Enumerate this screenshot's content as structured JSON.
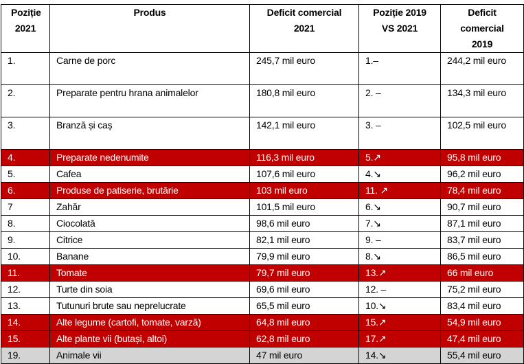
{
  "headers": [
    "Poziție 2021",
    "Produs",
    "Deficit comercial 2021",
    "Poziție 2019 VS 2021",
    "Deficit comercial 2019"
  ],
  "colors": {
    "highlight_red": "#c00000",
    "highlight_grey": "#d4d4d4"
  },
  "rows": [
    {
      "pos": "1.",
      "product": "Carne de porc",
      "deficit2021": "245,7 mil euro",
      "pos2019": "1.–",
      "deficit2019": "244,2 mil euro",
      "style": "tall"
    },
    {
      "pos": "2.",
      "product": "Preparate pentru hrana animalelor",
      "deficit2021": "180,8 mil euro",
      "pos2019": "2. –",
      "deficit2019": "134,3 mil euro",
      "style": "tall"
    },
    {
      "pos": "3.",
      "product": "Branză și caș",
      "deficit2021": "142,1 mil euro",
      "pos2019": "3. –",
      "deficit2019": "102,5 mil euro",
      "style": "tall"
    },
    {
      "pos": "4.",
      "product": "Preparate nedenumite",
      "deficit2021": "116,3 mil euro",
      "pos2019": "5.↗",
      "deficit2019": "95,8 mil euro",
      "style": "red"
    },
    {
      "pos": "5.",
      "product": "Cafea",
      "deficit2021": "107,6 mil euro",
      "pos2019": "4.↘",
      "deficit2019": "96,2 mil euro",
      "style": "std"
    },
    {
      "pos": "6.",
      "product": "Produse de patiserie, brutărie",
      "deficit2021": "103 mil euro",
      "pos2019": "11. ↗",
      "deficit2019": "78,4 mil euro",
      "style": "red"
    },
    {
      "pos": "7",
      "product": "Zahăr",
      "deficit2021": "101,5 mil euro",
      "pos2019": "6.↘",
      "deficit2019": "90,7 mil euro",
      "style": "std"
    },
    {
      "pos": "8.",
      "product": "Ciocolată",
      "deficit2021": "98,6 mil euro",
      "pos2019": "7.↘",
      "deficit2019": "87,1 mil euro",
      "style": "std"
    },
    {
      "pos": "9.",
      "product": "Citrice",
      "deficit2021": "82,1 mil euro",
      "pos2019": "9. –",
      "deficit2019": "83,7 mil euro",
      "style": "std"
    },
    {
      "pos": "10.",
      "product": "Banane",
      "deficit2021": "79,9 mil euro",
      "pos2019": "8.↘",
      "deficit2019": "86,5 mil euro",
      "style": "std"
    },
    {
      "pos": "11.",
      "product": "Tomate",
      "deficit2021": "79,7 mil euro",
      "pos2019": "13.↗",
      "deficit2019": "66 mil euro",
      "style": "red"
    },
    {
      "pos": "12.",
      "product": "Turte din soia",
      "deficit2021": "69,6 mil euro",
      "pos2019": "12. –",
      "deficit2019": "75,2 mil euro",
      "style": "std"
    },
    {
      "pos": "13.",
      "product": "Tutunuri brute sau neprelucrate",
      "deficit2021": "65,5 mil euro",
      "pos2019": "10.↘",
      "deficit2019": "83,4 mil euro",
      "style": "std"
    },
    {
      "pos": "14.",
      "product": "Alte legume (cartofi, tomate, varză)",
      "deficit2021": "64,8 mil euro",
      "pos2019": "15.↗",
      "deficit2019": "54,9 mil euro",
      "style": "red"
    },
    {
      "pos": "15.",
      "product": "Alte plante vii (butași, altoi)",
      "deficit2021": "62,8 mil euro",
      "pos2019": "17.↗",
      "deficit2019": "47,4 mil euro",
      "style": "red"
    },
    {
      "pos": "19.",
      "product": "Animale vii",
      "deficit2021": "47 mil euro",
      "pos2019": "14.↘",
      "deficit2019": "55,4 mil euro",
      "style": "grey"
    }
  ]
}
